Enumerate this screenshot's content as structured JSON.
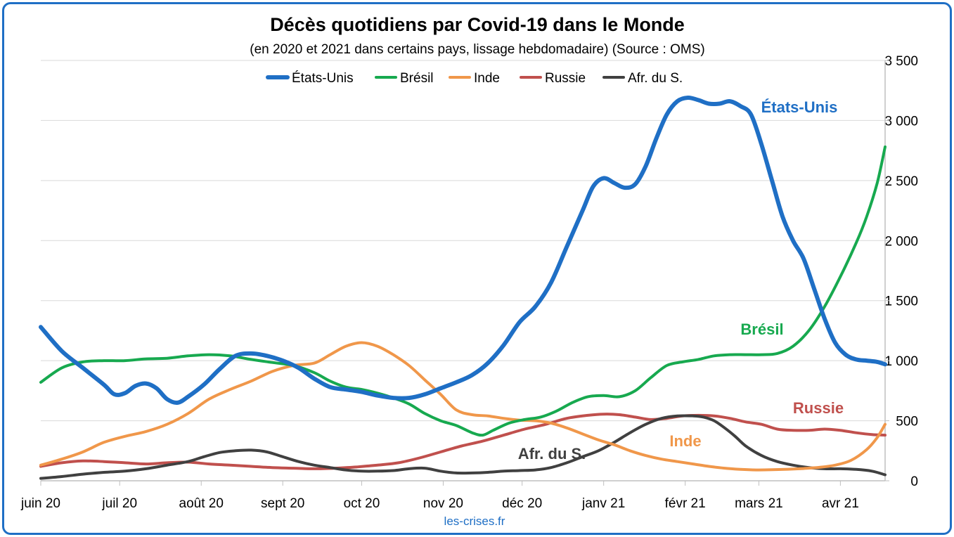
{
  "chart_data": {
    "type": "line",
    "title": "Décès quotidiens par Covid-19 dans le Monde",
    "subtitle": "(en 2020 et 2021 dans certains pays, lissage hebdomadaire) (Source : OMS)",
    "source": "les-crises.fr",
    "x_labels": [
      "juin 20",
      "juil 20",
      "août 20",
      "sept 20",
      "oct 20",
      "nov 20",
      "déc 20",
      "janv 21",
      "févr 21",
      "mars 21",
      "avr 21"
    ],
    "x_range_days": [
      0,
      321
    ],
    "y_ticks": [
      "0",
      "500",
      "1 000",
      "1 500",
      "2 000",
      "2 500",
      "3 000",
      "3 500"
    ],
    "ylim": [
      0,
      3500
    ],
    "y_axis_side": "right",
    "grid": true,
    "legend_position": "top-center",
    "series": [
      {
        "name": "États-Unis",
        "annotation": "États-Unis",
        "color": "#1f6fc5",
        "width": 6,
        "points": [
          [
            0,
            1280
          ],
          [
            8,
            1080
          ],
          [
            16,
            940
          ],
          [
            24,
            800
          ],
          [
            28,
            720
          ],
          [
            32,
            730
          ],
          [
            36,
            790
          ],
          [
            40,
            810
          ],
          [
            44,
            770
          ],
          [
            48,
            680
          ],
          [
            52,
            650
          ],
          [
            56,
            700
          ],
          [
            62,
            800
          ],
          [
            68,
            930
          ],
          [
            74,
            1040
          ],
          [
            80,
            1060
          ],
          [
            86,
            1040
          ],
          [
            92,
            1000
          ],
          [
            98,
            940
          ],
          [
            104,
            850
          ],
          [
            110,
            780
          ],
          [
            116,
            760
          ],
          [
            122,
            740
          ],
          [
            128,
            710
          ],
          [
            134,
            690
          ],
          [
            140,
            690
          ],
          [
            146,
            720
          ],
          [
            152,
            770
          ],
          [
            158,
            820
          ],
          [
            164,
            880
          ],
          [
            170,
            980
          ],
          [
            176,
            1130
          ],
          [
            182,
            1320
          ],
          [
            188,
            1450
          ],
          [
            194,
            1650
          ],
          [
            200,
            1950
          ],
          [
            206,
            2250
          ],
          [
            210,
            2450
          ],
          [
            214,
            2520
          ],
          [
            218,
            2480
          ],
          [
            222,
            2440
          ],
          [
            226,
            2470
          ],
          [
            230,
            2620
          ],
          [
            234,
            2850
          ],
          [
            238,
            3050
          ],
          [
            242,
            3160
          ],
          [
            246,
            3190
          ],
          [
            250,
            3170
          ],
          [
            254,
            3140
          ],
          [
            258,
            3140
          ],
          [
            262,
            3160
          ],
          [
            266,
            3120
          ],
          [
            270,
            3050
          ],
          [
            274,
            2800
          ],
          [
            278,
            2500
          ],
          [
            282,
            2200
          ],
          [
            286,
            2000
          ],
          [
            290,
            1850
          ],
          [
            294,
            1600
          ],
          [
            298,
            1350
          ],
          [
            302,
            1150
          ],
          [
            306,
            1050
          ],
          [
            310,
            1010
          ],
          [
            314,
            1000
          ],
          [
            318,
            990
          ],
          [
            321,
            970
          ]
        ]
      },
      {
        "name": "Brésil",
        "annotation": "Brésil",
        "color": "#17a94f",
        "width": 4,
        "points": [
          [
            0,
            820
          ],
          [
            8,
            940
          ],
          [
            16,
            990
          ],
          [
            24,
            1000
          ],
          [
            32,
            1000
          ],
          [
            40,
            1015
          ],
          [
            48,
            1020
          ],
          [
            56,
            1040
          ],
          [
            64,
            1050
          ],
          [
            72,
            1040
          ],
          [
            80,
            1010
          ],
          [
            88,
            985
          ],
          [
            96,
            960
          ],
          [
            104,
            900
          ],
          [
            110,
            830
          ],
          [
            116,
            780
          ],
          [
            122,
            760
          ],
          [
            128,
            730
          ],
          [
            134,
            690
          ],
          [
            140,
            640
          ],
          [
            146,
            560
          ],
          [
            152,
            500
          ],
          [
            158,
            460
          ],
          [
            164,
            400
          ],
          [
            168,
            380
          ],
          [
            172,
            420
          ],
          [
            178,
            480
          ],
          [
            184,
            510
          ],
          [
            190,
            530
          ],
          [
            196,
            580
          ],
          [
            202,
            650
          ],
          [
            208,
            700
          ],
          [
            214,
            710
          ],
          [
            220,
            700
          ],
          [
            226,
            750
          ],
          [
            232,
            860
          ],
          [
            238,
            960
          ],
          [
            244,
            990
          ],
          [
            250,
            1010
          ],
          [
            256,
            1040
          ],
          [
            262,
            1050
          ],
          [
            268,
            1050
          ],
          [
            274,
            1050
          ],
          [
            280,
            1060
          ],
          [
            286,
            1120
          ],
          [
            292,
            1250
          ],
          [
            298,
            1450
          ],
          [
            304,
            1700
          ],
          [
            310,
            1980
          ],
          [
            314,
            2200
          ],
          [
            318,
            2480
          ],
          [
            321,
            2780
          ]
        ]
      },
      {
        "name": "Inde",
        "annotation": "Inde",
        "color": "#f0974a",
        "width": 4,
        "points": [
          [
            0,
            130
          ],
          [
            8,
            180
          ],
          [
            16,
            240
          ],
          [
            24,
            320
          ],
          [
            32,
            370
          ],
          [
            40,
            410
          ],
          [
            48,
            470
          ],
          [
            56,
            560
          ],
          [
            64,
            680
          ],
          [
            72,
            760
          ],
          [
            80,
            830
          ],
          [
            88,
            910
          ],
          [
            96,
            960
          ],
          [
            104,
            980
          ],
          [
            110,
            1050
          ],
          [
            116,
            1120
          ],
          [
            122,
            1150
          ],
          [
            128,
            1120
          ],
          [
            134,
            1050
          ],
          [
            140,
            960
          ],
          [
            146,
            840
          ],
          [
            152,
            720
          ],
          [
            158,
            590
          ],
          [
            164,
            550
          ],
          [
            170,
            540
          ],
          [
            176,
            520
          ],
          [
            182,
            505
          ],
          [
            188,
            500
          ],
          [
            194,
            480
          ],
          [
            200,
            440
          ],
          [
            206,
            390
          ],
          [
            212,
            340
          ],
          [
            218,
            300
          ],
          [
            224,
            250
          ],
          [
            230,
            210
          ],
          [
            236,
            180
          ],
          [
            242,
            160
          ],
          [
            248,
            140
          ],
          [
            254,
            120
          ],
          [
            260,
            105
          ],
          [
            266,
            95
          ],
          [
            272,
            90
          ],
          [
            278,
            92
          ],
          [
            284,
            96
          ],
          [
            290,
            102
          ],
          [
            296,
            112
          ],
          [
            302,
            130
          ],
          [
            308,
            170
          ],
          [
            314,
            260
          ],
          [
            318,
            360
          ],
          [
            321,
            470
          ]
        ]
      },
      {
        "name": "Russie",
        "annotation": "Russie",
        "color": "#c0504d",
        "width": 4,
        "points": [
          [
            0,
            120
          ],
          [
            8,
            150
          ],
          [
            16,
            165
          ],
          [
            24,
            160
          ],
          [
            32,
            150
          ],
          [
            40,
            140
          ],
          [
            48,
            150
          ],
          [
            56,
            155
          ],
          [
            64,
            140
          ],
          [
            72,
            130
          ],
          [
            80,
            120
          ],
          [
            88,
            110
          ],
          [
            96,
            105
          ],
          [
            104,
            100
          ],
          [
            112,
            105
          ],
          [
            120,
            115
          ],
          [
            128,
            130
          ],
          [
            136,
            150
          ],
          [
            144,
            190
          ],
          [
            152,
            240
          ],
          [
            160,
            290
          ],
          [
            168,
            330
          ],
          [
            176,
            380
          ],
          [
            184,
            430
          ],
          [
            192,
            470
          ],
          [
            200,
            520
          ],
          [
            208,
            545
          ],
          [
            214,
            555
          ],
          [
            220,
            550
          ],
          [
            226,
            530
          ],
          [
            232,
            510
          ],
          [
            238,
            520
          ],
          [
            244,
            540
          ],
          [
            250,
            545
          ],
          [
            256,
            540
          ],
          [
            262,
            520
          ],
          [
            268,
            490
          ],
          [
            274,
            470
          ],
          [
            280,
            430
          ],
          [
            286,
            420
          ],
          [
            292,
            420
          ],
          [
            298,
            430
          ],
          [
            304,
            420
          ],
          [
            310,
            400
          ],
          [
            316,
            385
          ],
          [
            321,
            380
          ]
        ]
      },
      {
        "name": "Afr. du S.",
        "annotation": "Afr. du S.",
        "color": "#404040",
        "width": 4,
        "points": [
          [
            0,
            20
          ],
          [
            8,
            35
          ],
          [
            16,
            55
          ],
          [
            24,
            70
          ],
          [
            32,
            80
          ],
          [
            40,
            100
          ],
          [
            48,
            130
          ],
          [
            56,
            160
          ],
          [
            62,
            200
          ],
          [
            68,
            235
          ],
          [
            74,
            250
          ],
          [
            80,
            255
          ],
          [
            86,
            240
          ],
          [
            92,
            200
          ],
          [
            98,
            160
          ],
          [
            104,
            130
          ],
          [
            110,
            110
          ],
          [
            116,
            90
          ],
          [
            122,
            80
          ],
          [
            128,
            80
          ],
          [
            134,
            85
          ],
          [
            140,
            100
          ],
          [
            146,
            105
          ],
          [
            152,
            80
          ],
          [
            158,
            65
          ],
          [
            164,
            65
          ],
          [
            170,
            70
          ],
          [
            176,
            80
          ],
          [
            182,
            85
          ],
          [
            188,
            90
          ],
          [
            194,
            110
          ],
          [
            200,
            150
          ],
          [
            206,
            200
          ],
          [
            212,
            250
          ],
          [
            218,
            320
          ],
          [
            224,
            400
          ],
          [
            230,
            470
          ],
          [
            236,
            520
          ],
          [
            242,
            540
          ],
          [
            248,
            540
          ],
          [
            252,
            530
          ],
          [
            256,
            500
          ],
          [
            260,
            440
          ],
          [
            264,
            370
          ],
          [
            268,
            290
          ],
          [
            274,
            210
          ],
          [
            280,
            160
          ],
          [
            286,
            130
          ],
          [
            292,
            110
          ],
          [
            298,
            100
          ],
          [
            304,
            100
          ],
          [
            310,
            95
          ],
          [
            316,
            80
          ],
          [
            321,
            50
          ]
        ]
      }
    ]
  }
}
